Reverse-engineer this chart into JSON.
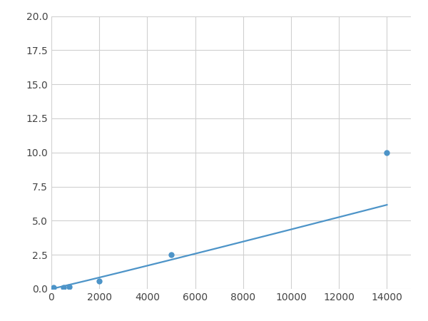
{
  "x": [
    100,
    500,
    750,
    2000,
    5000,
    14000
  ],
  "y": [
    0.08,
    0.13,
    0.18,
    0.55,
    2.5,
    10.0
  ],
  "line_color": "#4d94c8",
  "marker_color": "#4d94c8",
  "marker_size": 6,
  "marker_style": "o",
  "line_width": 1.6,
  "xlim": [
    0,
    15000
  ],
  "ylim": [
    0,
    20
  ],
  "xticks": [
    0,
    2000,
    4000,
    6000,
    8000,
    10000,
    12000,
    14000
  ],
  "yticks": [
    0.0,
    2.5,
    5.0,
    7.5,
    10.0,
    12.5,
    15.0,
    17.5,
    20.0
  ],
  "grid_color": "#d0d0d0",
  "background_color": "#ffffff",
  "figsize": [
    6.0,
    4.5
  ],
  "dpi": 100
}
